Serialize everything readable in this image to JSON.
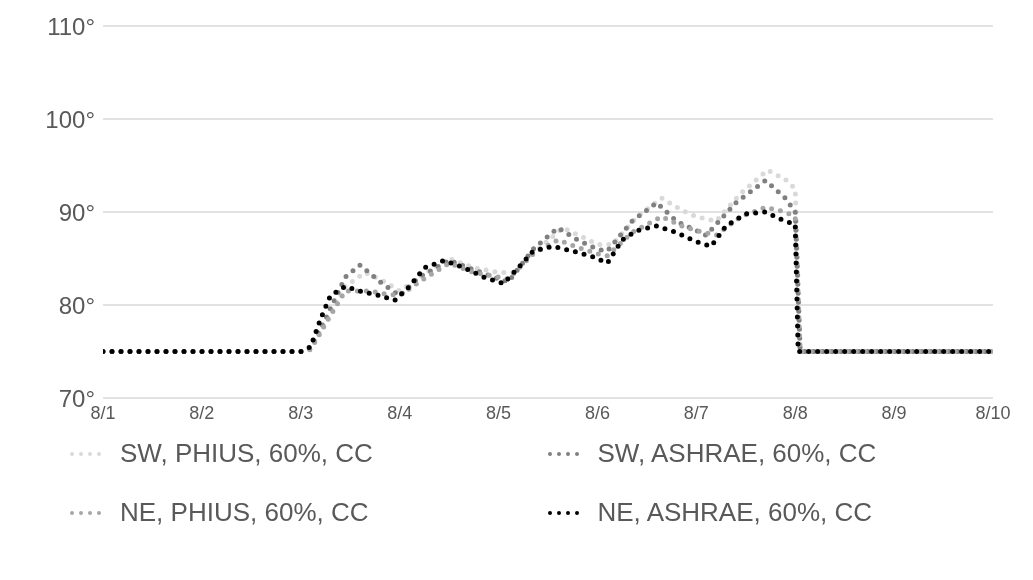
{
  "chart_data": {
    "type": "line",
    "xlim": [
      "--08-01",
      "--08-10"
    ],
    "xticks": [
      {
        "value": "--08-01",
        "label": "8/1"
      },
      {
        "value": "--08-02",
        "label": "8/2"
      },
      {
        "value": "--08-03",
        "label": "8/3"
      },
      {
        "value": "--08-04",
        "label": "8/4"
      },
      {
        "value": "--08-05",
        "label": "8/5"
      },
      {
        "value": "--08-06",
        "label": "8/6"
      },
      {
        "value": "--08-07",
        "label": "8/7"
      },
      {
        "value": "--08-08",
        "label": "8/8"
      },
      {
        "value": "--08-09",
        "label": "8/9"
      },
      {
        "value": "--08-10",
        "label": "8/10"
      }
    ],
    "ylim": [
      70,
      110
    ],
    "yticks": [
      {
        "value": 70,
        "label": "70°"
      },
      {
        "value": 80,
        "label": "80°"
      },
      {
        "value": 90,
        "label": "90°"
      },
      {
        "value": 100,
        "label": "100°"
      },
      {
        "value": 110,
        "label": "110°"
      }
    ],
    "grid": "y",
    "legend": "bottom",
    "line_style": "dotted",
    "marker": "none",
    "series": [
      {
        "name": "SW, PHIUS, 60%, CC",
        "color": "#d9d9d9",
        "x": [
          "--08-01",
          "--08-03",
          "--08-03T02:24",
          "--08-03T06:00",
          "--08-03T10:48",
          "--08-03T15:36",
          "--08-03T20:24",
          "--08-04",
          "--08-04T04:48",
          "--08-04T12:00",
          "--08-04T18:00",
          "--08-05",
          "--08-05T03:36",
          "--08-05T09:36",
          "--08-05T15:36",
          "--08-05T20:24",
          "--08-06",
          "--08-06T03:36",
          "--08-06T09:36",
          "--08-06T15:36",
          "--08-06T20:24",
          "--08-07",
          "--08-07T04:48",
          "--08-07T10:48",
          "--08-07T17:17",
          "--08-07T21:36",
          "--08-08",
          "--08-08T01:12",
          "--08-10"
        ],
        "values": [
          75,
          75,
          75.3,
          78,
          82,
          83.5,
          82.5,
          81.5,
          83,
          85,
          84,
          83.5,
          83.5,
          86,
          88.3,
          87.3,
          86.5,
          86.5,
          89.5,
          91.5,
          90.2,
          89.5,
          89,
          92,
          94.5,
          93.5,
          92.5,
          75,
          75
        ]
      },
      {
        "name": "SW, ASHRAE, 60%, CC",
        "color": "#808080",
        "x": [
          "--08-01",
          "--08-03",
          "--08-03T02:24",
          "--08-03T06:00",
          "--08-03T10:48",
          "--08-03T14:24",
          "--08-03T19:12",
          "--08-04",
          "--08-04T04:48",
          "--08-04T12:00",
          "--08-04T18:00",
          "--08-05",
          "--08-05T02:24",
          "--08-05T08:24",
          "--08-05T14:24",
          "--08-05T19:12",
          "--08-06",
          "--08-06T02:24",
          "--08-06T08:24",
          "--08-06T14:24",
          "--08-06T19:12",
          "--08-07",
          "--08-07T02:24",
          "--08-07T09:36",
          "--08-07T16:48",
          "--08-07T21:36",
          "--08-08",
          "--08-08T01:12",
          "--08-10"
        ],
        "values": [
          75,
          75,
          75.4,
          78.5,
          83,
          84.3,
          82.5,
          81,
          83,
          84.8,
          83.8,
          82.8,
          82.5,
          86,
          88.3,
          87,
          86,
          85.8,
          89,
          91,
          89,
          88,
          87.5,
          91,
          93.4,
          91.5,
          90,
          75,
          75
        ]
      },
      {
        "name": "NE, PHIUS, 60%, CC",
        "color": "#a6a6a6",
        "x": [
          "--08-01",
          "--08-03",
          "--08-03T02:24",
          "--08-03T06:00",
          "--08-03T10:48",
          "--08-03T16:48",
          "--08-03T20:24",
          "--08-04",
          "--08-04T04:48",
          "--08-04T12:00",
          "--08-04T18:00",
          "--08-05",
          "--08-05T02:24",
          "--08-05T08:24",
          "--08-05T14:24",
          "--08-05T19:12",
          "--08-06",
          "--08-06T02:24",
          "--08-06T08:24",
          "--08-06T15:36",
          "--08-06T20:24",
          "--08-07",
          "--08-07T04:48",
          "--08-07T10:48",
          "--08-07T16:48",
          "--08-07T21:36",
          "--08-08",
          "--08-08T01:12",
          "--08-10"
        ],
        "values": [
          75,
          75,
          75.2,
          78,
          81.5,
          81.5,
          81.2,
          81,
          82.5,
          84.5,
          83.5,
          83,
          82.8,
          85.5,
          87,
          86.2,
          85.5,
          85.3,
          87.8,
          89.5,
          88.5,
          88,
          87.5,
          89.5,
          90.5,
          90,
          89.5,
          75,
          75
        ]
      },
      {
        "name": "NE, ASHRAE, 60%, CC",
        "color": "#000000",
        "x": [
          "--08-01",
          "--08-03",
          "--08-03T02:24",
          "--08-03T04:48",
          "--08-03T07:12",
          "--08-03T10:48",
          "--08-03T14:24",
          "--08-03T19:12",
          "--08-03T22:48",
          "--08-04T02:24",
          "--08-04T06:00",
          "--08-04T10:48",
          "--08-04T15:36",
          "--08-04T20:24",
          "--08-05T01:12",
          "--08-05T04:48",
          "--08-05T08:24",
          "--08-05T13:12",
          "--08-05T18:00",
          "--08-05T22:48",
          "--08-06T02:24",
          "--08-06T06:00",
          "--08-06T09:36",
          "--08-06T14:24",
          "--08-06T19:12",
          "--08-07",
          "--08-07T03:36",
          "--08-07T07:12",
          "--08-07T12:00",
          "--08-07T16:48",
          "--08-07T21:36",
          "--08-08",
          "--08-08T00:43",
          "--08-10"
        ],
        "values": [
          75,
          75,
          75.5,
          78.5,
          81,
          82,
          81.5,
          81,
          80.5,
          82,
          84,
          84.8,
          84,
          83,
          82.3,
          84,
          85.8,
          86.3,
          85.8,
          85.2,
          84.5,
          87,
          88,
          88.5,
          87.8,
          86.8,
          86.3,
          88.5,
          89.8,
          90,
          89,
          88.7,
          75,
          75
        ]
      }
    ]
  }
}
